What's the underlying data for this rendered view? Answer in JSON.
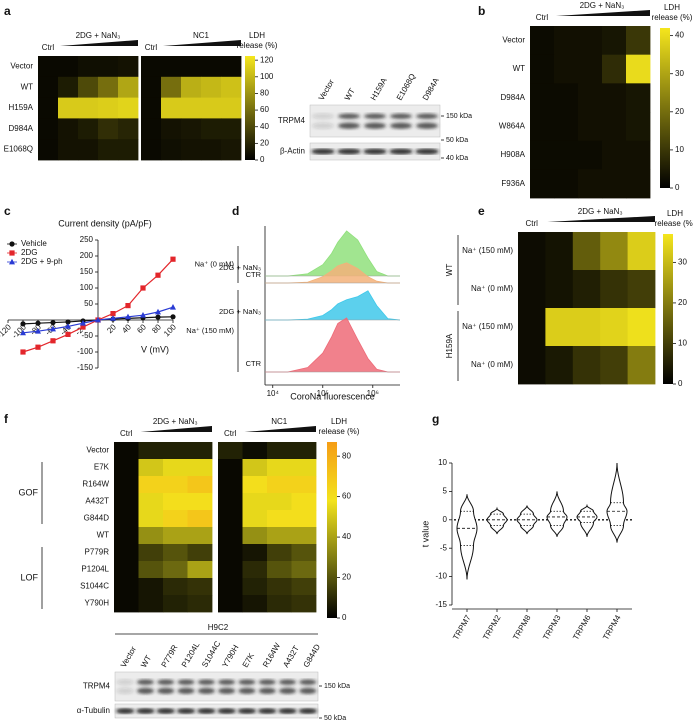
{
  "chart_data": [
    {
      "type": "heatmap",
      "label": "a",
      "group_label": "2DG + NaN₃",
      "categories": [
        "Ctrl",
        null,
        null,
        null,
        null
      ],
      "rows": [
        "Vector",
        "WT",
        "H159A",
        "D984A",
        "E1068Q"
      ],
      "values": [
        [
          5,
          5,
          8,
          8,
          10
        ],
        [
          5,
          15,
          40,
          60,
          90
        ],
        [
          5,
          110,
          110,
          112,
          115
        ],
        [
          5,
          10,
          15,
          25,
          20
        ],
        [
          5,
          10,
          10,
          15,
          15
        ]
      ]
    },
    {
      "type": "heatmap",
      "group_label": "NC1",
      "categories": [
        "Ctrl",
        null,
        null,
        null,
        null
      ],
      "values": [
        [
          5,
          5,
          5,
          5,
          5
        ],
        [
          5,
          60,
          95,
          100,
          105
        ],
        [
          5,
          110,
          110,
          110,
          110
        ],
        [
          5,
          10,
          12,
          15,
          15
        ],
        [
          5,
          8,
          10,
          10,
          12
        ]
      ],
      "colors": [
        "#000000",
        "#f5e61d"
      ],
      "zlim": [
        0,
        125
      ],
      "zticks": [
        0,
        20,
        40,
        60,
        80,
        100,
        120
      ],
      "colorbar_label": [
        "LDH",
        "release (%)"
      ]
    },
    {
      "type": "heatmap",
      "label": "b",
      "group_label": "2DG + NaN₃",
      "categories": [
        "Ctrl",
        null,
        null,
        null,
        null
      ],
      "rows": [
        "Vector",
        "WT",
        "D984A",
        "W864A",
        "H908A",
        "F936A"
      ],
      "values": [
        [
          2,
          3,
          3,
          4,
          10
        ],
        [
          2,
          3,
          3,
          8,
          40
        ],
        [
          2,
          2,
          3,
          3,
          4
        ],
        [
          2,
          2,
          3,
          3,
          4
        ],
        [
          2,
          2,
          2,
          3,
          3
        ],
        [
          2,
          2,
          3,
          3,
          3
        ]
      ],
      "colors": [
        "#000000",
        "#f5e61d"
      ],
      "zlim": [
        0,
        42
      ],
      "zticks": [
        0,
        10,
        20,
        30,
        40
      ],
      "colorbar_label": [
        "LDH",
        "release (%)"
      ]
    },
    {
      "type": "line",
      "label": "c",
      "title": "Current density (pA/pF)",
      "x_label": "V (mV)",
      "x": [
        -100,
        -80,
        -60,
        -40,
        -20,
        0,
        20,
        40,
        60,
        80,
        100
      ],
      "series": [
        {
          "name": "Vehicle",
          "color": "#111111",
          "marker": "circle",
          "values": [
            -12,
            -10,
            -8,
            -6,
            -3,
            0,
            3,
            5,
            7,
            9,
            10
          ]
        },
        {
          "name": "2DG",
          "color": "#e3262b",
          "marker": "square",
          "values": [
            -100,
            -85,
            -65,
            -45,
            -22,
            0,
            20,
            45,
            100,
            140,
            190
          ]
        },
        {
          "name": "2DG + 9-ph",
          "color": "#2a3bd4",
          "marker": "triangle",
          "values": [
            -40,
            -35,
            -28,
            -20,
            -10,
            0,
            5,
            10,
            15,
            25,
            40
          ]
        }
      ],
      "xlim": [
        -120,
        100
      ],
      "ylim": [
        -150,
        250
      ],
      "xticks": [
        -120,
        -100,
        -80,
        -60,
        -40,
        -20,
        20,
        40,
        60,
        80,
        100
      ],
      "yticks": [
        -150,
        -100,
        -50,
        50,
        100,
        150,
        200,
        250
      ]
    },
    {
      "type": "density",
      "label": "d",
      "x_label": "CoroNa fluorescence",
      "log_x": true,
      "x": [
        20000,
        50000,
        100000,
        150000,
        200000,
        300000,
        500000,
        800000,
        1200000,
        2000000
      ],
      "xlim": [
        7000,
        3500000
      ],
      "xticks": [
        {
          "value": 10000,
          "label": "10⁴"
        },
        {
          "value": 100000,
          "label": "10⁵"
        },
        {
          "value": 1000000,
          "label": "10⁶"
        }
      ],
      "groups": [
        "Na⁺ (0 mM)",
        "Na⁺ (150 mM)"
      ],
      "series": [
        {
          "name": "2DG + NaN₃",
          "color": "#90e07c",
          "values": [
            0,
            5,
            25,
            50,
            75,
            100,
            80,
            40,
            10,
            0
          ]
        },
        {
          "name": "CTR",
          "color": "#f3b27a",
          "values": [
            0,
            2,
            14,
            27,
            38,
            45,
            32,
            14,
            4,
            0
          ]
        },
        {
          "name": "2DG + NaN₃",
          "color": "#3fc8ea",
          "values": [
            0,
            2,
            10,
            23,
            36,
            45,
            52,
            65,
            32,
            3
          ]
        },
        {
          "name": "CTR",
          "color": "#ee6b78",
          "values": [
            0,
            10,
            42,
            78,
            108,
            120,
            72,
            30,
            6,
            0
          ]
        }
      ]
    },
    {
      "type": "heatmap",
      "label": "e",
      "group_label": "2DG + NaN₃",
      "categories": [
        "Ctrl",
        null,
        null,
        null,
        null
      ],
      "rows": [
        "Na⁺ (150 mM)",
        "Na⁺ (0 mM)",
        "Na⁺ (150 mM)",
        "Na⁺ (0 mM)"
      ],
      "row_groups": [
        "WT",
        "WT",
        "H159A",
        "H159A"
      ],
      "values": [
        [
          2,
          3,
          15,
          22,
          33
        ],
        [
          2,
          3,
          5,
          8,
          10
        ],
        [
          2,
          33,
          33,
          34,
          36
        ],
        [
          2,
          4,
          8,
          10,
          20
        ]
      ],
      "colors": [
        "#000000",
        "#f5e61d"
      ],
      "zlim": [
        0,
        37
      ],
      "zticks": [
        0,
        10,
        20,
        30
      ],
      "colorbar_label": [
        "LDH",
        "release (%)"
      ]
    },
    {
      "type": "heatmap",
      "label": "f",
      "group_label": "2DG + NaN₃",
      "categories": [
        "Ctrl",
        null,
        null,
        null
      ],
      "rows": [
        "Vector",
        "E7K",
        "R164W",
        "A432T",
        "G844D",
        "WT",
        "P779R",
        "P1204L",
        "S1044C",
        "Y790H"
      ],
      "row_groups": [
        null,
        "GOF",
        "GOF",
        "GOF",
        "GOF",
        null,
        "LOF",
        "LOF",
        "LOF",
        "LOF"
      ],
      "values": [
        [
          2,
          8,
          8,
          8
        ],
        [
          2,
          50,
          55,
          55
        ],
        [
          2,
          65,
          65,
          70
        ],
        [
          2,
          55,
          60,
          60
        ],
        [
          2,
          55,
          65,
          70
        ],
        [
          2,
          35,
          40,
          40
        ],
        [
          2,
          15,
          20,
          15
        ],
        [
          2,
          20,
          25,
          40
        ],
        [
          2,
          5,
          10,
          12
        ],
        [
          2,
          5,
          8,
          10
        ]
      ]
    },
    {
      "type": "heatmap",
      "group_label": "NC1",
      "categories": [
        "Ctrl",
        null,
        null,
        null
      ],
      "values": [
        [
          8,
          3,
          8,
          8
        ],
        [
          2,
          50,
          55,
          55
        ],
        [
          2,
          60,
          65,
          65
        ],
        [
          2,
          55,
          55,
          60
        ],
        [
          2,
          55,
          60,
          60
        ],
        [
          2,
          35,
          40,
          40
        ],
        [
          2,
          5,
          15,
          20
        ],
        [
          2,
          10,
          20,
          25
        ],
        [
          2,
          8,
          12,
          15
        ],
        [
          2,
          5,
          10,
          12
        ]
      ],
      "colors": [
        "#000000",
        "#7d7a12",
        "#f3e31c",
        "#f59d16"
      ],
      "zlim": [
        0,
        87
      ],
      "zticks": [
        0,
        20,
        40,
        60,
        80
      ],
      "colorbar_label": [
        "LDH",
        "release (%)"
      ]
    },
    {
      "type": "violin",
      "label": "g",
      "y_label": "t value",
      "categories": [
        "TRPM7",
        "TRPM2",
        "TRPM8",
        "TRPM3",
        "TRPM6",
        "TRPM4"
      ],
      "min": [
        -10.5,
        -2.5,
        -2.5,
        -3,
        -3,
        -4
      ],
      "q1": [
        -4.5,
        -1,
        -1,
        -1,
        -0.5,
        -1
      ],
      "median": [
        -1.5,
        0,
        0,
        0.5,
        0.5,
        1.5
      ],
      "q3": [
        1.5,
        1,
        1,
        1.5,
        1.5,
        3
      ],
      "max": [
        4.5,
        2,
        2.5,
        5,
        2.5,
        10
      ],
      "ylim": [
        -15,
        10
      ],
      "yticks": [
        -15,
        -10,
        -5,
        0,
        5,
        10
      ]
    }
  ],
  "blots": [
    {
      "lanes": [
        "Vector",
        "WT",
        "H159A",
        "E1068Q",
        "D984A"
      ],
      "rows": [
        "TRPM4",
        "β-Actin"
      ],
      "markers": [
        "150 kDa",
        "50 kDa",
        "40 kDa"
      ]
    },
    {
      "title": "H9C2",
      "lanes": [
        "Vector",
        "WT",
        "P779R",
        "P1204L",
        "S1044C",
        "Y790H",
        "E7K",
        "R164W",
        "A432T",
        "G844D"
      ],
      "rows": [
        "TRPM4",
        "α-Tubulin"
      ],
      "markers": [
        "150 kDa",
        "50 kDa"
      ]
    }
  ]
}
